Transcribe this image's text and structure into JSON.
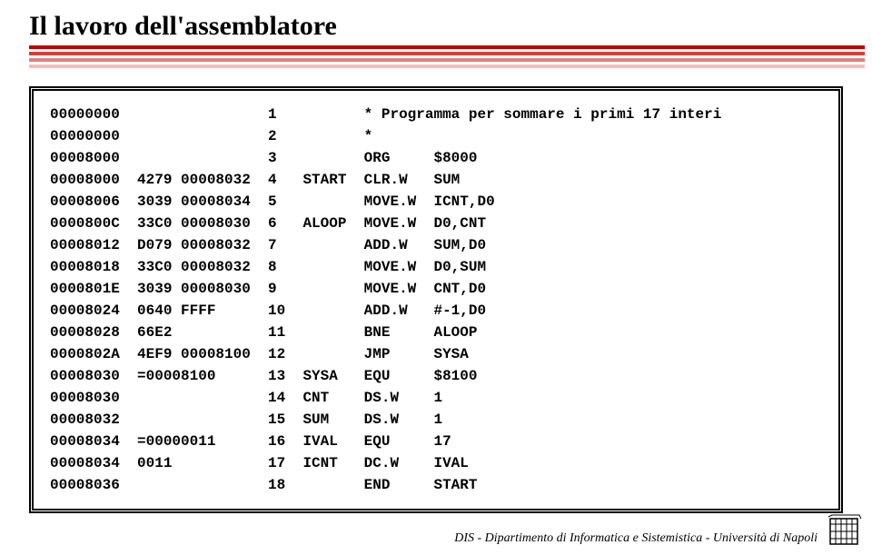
{
  "title": "Il lavoro dell'assemblatore",
  "stripes": {
    "colors": [
      "#c00000",
      "#d04040",
      "#e08080",
      "#f0c0c0"
    ],
    "widths": [
      920,
      920,
      920,
      920
    ]
  },
  "code_box": {
    "font_family": "Courier New",
    "font_size": 16,
    "font_weight": "bold",
    "border_style": "double",
    "border_width": 5,
    "border_color": "#000000",
    "col_widths": {
      "addr": 10,
      "hex": 15,
      "line": 4,
      "label": 7,
      "mnem": 8,
      "oper": 8
    },
    "rows": [
      {
        "addr": "00000000",
        "hex": "",
        "line": "1",
        "label": "",
        "mnem": "* Programma per sommare i primi 17 interi",
        "oper": ""
      },
      {
        "addr": "00000000",
        "hex": "",
        "line": "2",
        "label": "",
        "mnem": "*",
        "oper": ""
      },
      {
        "addr": "00008000",
        "hex": "",
        "line": "3",
        "label": "",
        "mnem": "ORG",
        "oper": "$8000"
      },
      {
        "addr": "00008000",
        "hex": "4279 00008032",
        "line": "4",
        "label": "START",
        "mnem": "CLR.W",
        "oper": "SUM"
      },
      {
        "addr": "00008006",
        "hex": "3039 00008034",
        "line": "5",
        "label": "",
        "mnem": "MOVE.W",
        "oper": "ICNT,D0"
      },
      {
        "addr": "0000800C",
        "hex": "33C0 00008030",
        "line": "6",
        "label": "ALOOP",
        "mnem": "MOVE.W",
        "oper": "D0,CNT"
      },
      {
        "addr": "00008012",
        "hex": "D079 00008032",
        "line": "7",
        "label": "",
        "mnem": "ADD.W",
        "oper": "SUM,D0"
      },
      {
        "addr": "00008018",
        "hex": "33C0 00008032",
        "line": "8",
        "label": "",
        "mnem": "MOVE.W",
        "oper": "D0,SUM"
      },
      {
        "addr": "0000801E",
        "hex": "3039 00008030",
        "line": "9",
        "label": "",
        "mnem": "MOVE.W",
        "oper": "CNT,D0"
      },
      {
        "addr": "00008024",
        "hex": "0640 FFFF",
        "line": "10",
        "label": "",
        "mnem": "ADD.W",
        "oper": "#-1,D0"
      },
      {
        "addr": "00008028",
        "hex": "66E2",
        "line": "11",
        "label": "",
        "mnem": "BNE",
        "oper": "ALOOP"
      },
      {
        "addr": "0000802A",
        "hex": "4EF9 00008100",
        "line": "12",
        "label": "",
        "mnem": "JMP",
        "oper": "SYSA"
      },
      {
        "addr": "00008030",
        "hex": "=00008100",
        "line": "13",
        "label": "SYSA",
        "mnem": "EQU",
        "oper": "$8100"
      },
      {
        "addr": "00008030",
        "hex": "",
        "line": "14",
        "label": "CNT",
        "mnem": "DS.W",
        "oper": "1"
      },
      {
        "addr": "00008032",
        "hex": "",
        "line": "15",
        "label": "SUM",
        "mnem": "DS.W",
        "oper": "1"
      },
      {
        "addr": "00008034",
        "hex": "=00000011",
        "line": "16",
        "label": "IVAL",
        "mnem": "EQU",
        "oper": "17"
      },
      {
        "addr": "00008034",
        "hex": "0011",
        "line": "17",
        "label": "ICNT",
        "mnem": "DC.W",
        "oper": "IVAL"
      },
      {
        "addr": "00008036",
        "hex": "",
        "line": "18",
        "label": "",
        "mnem": "END",
        "oper": "START"
      }
    ]
  },
  "footer": "DIS - Dipartimento di Informatica e Sistemistica - Università di Napoli",
  "logo": {
    "stroke": "#000000",
    "fill": "#ffffff"
  }
}
